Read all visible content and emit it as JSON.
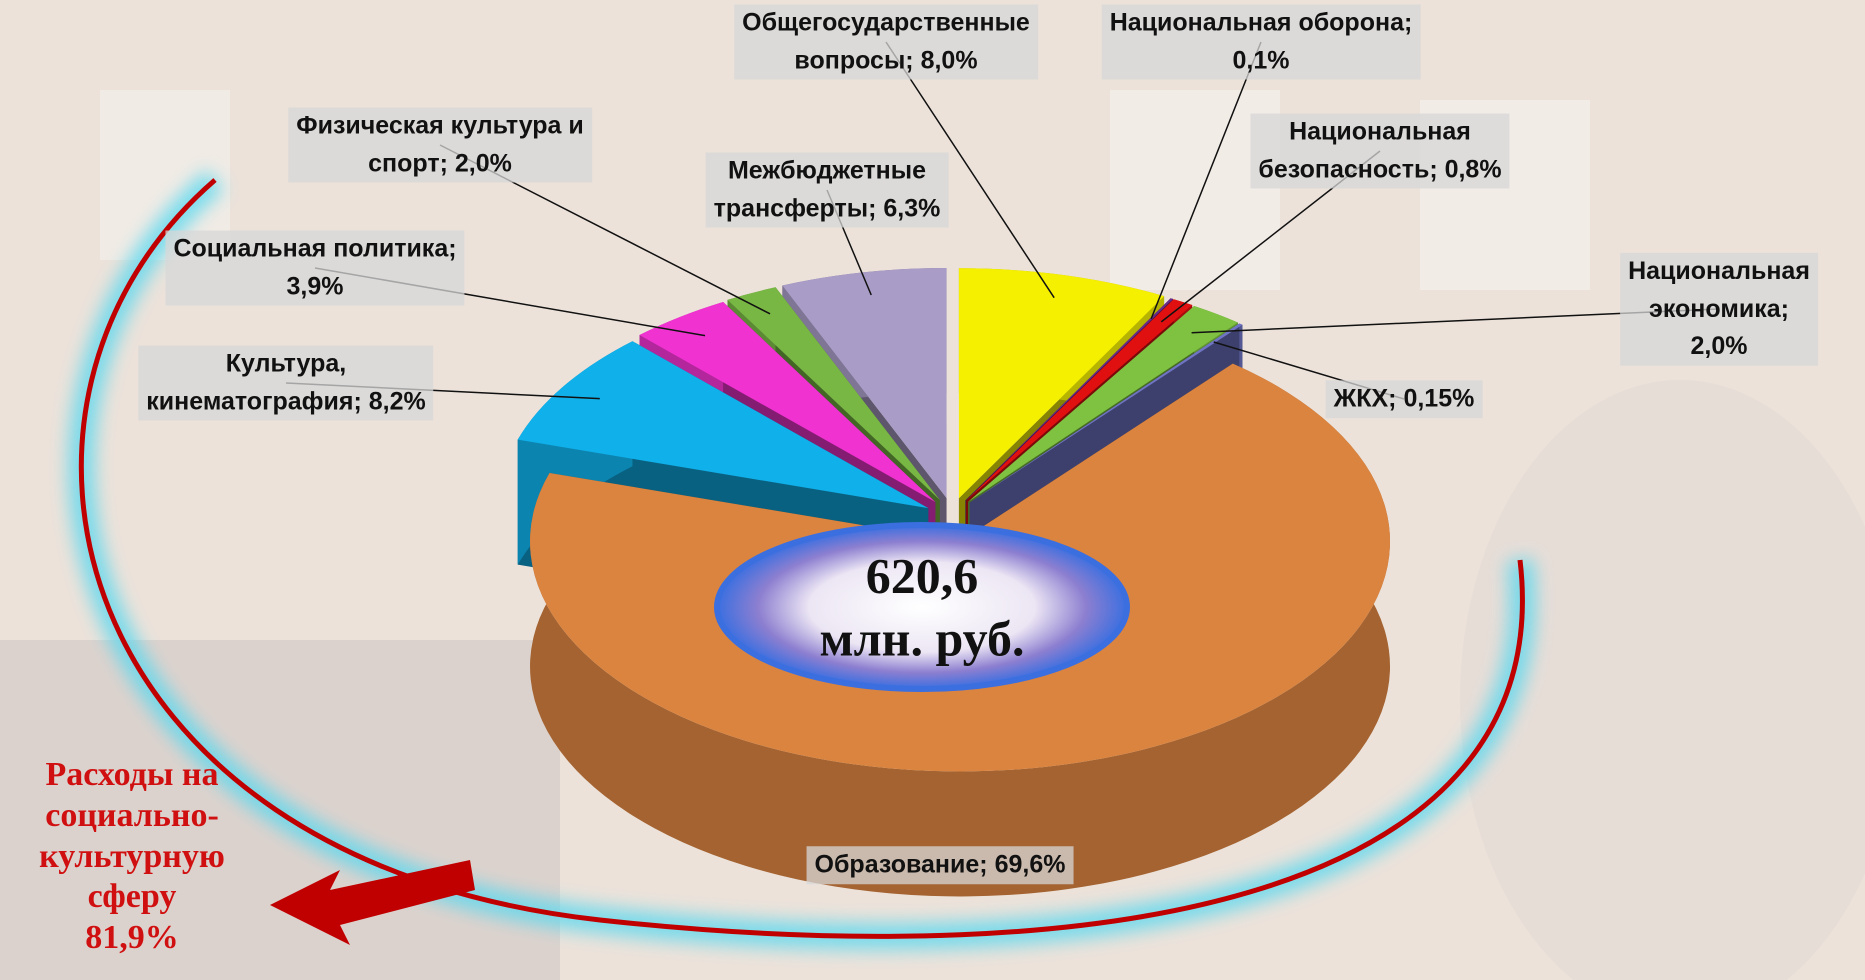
{
  "chart_data": {
    "type": "pie",
    "value_labels": [
      "Общегосударственные\nвопросы; 8,0%",
      "Национальная оборона;\n0,1%",
      "Национальная\nбезопасность; 0,8%",
      "Национальная\nэкономика; 2,0%",
      "ЖКХ; 0,15%",
      "Образование; 69,6%",
      "Культура,\nкинематография; 8,2%",
      "Социальная политика;\n3,9%",
      "Физическая культура и\nспорт; 2,0%",
      "Межбюджетные\nтрансферты; 6,3%"
    ],
    "values": [
      8.0,
      0.1,
      0.8,
      2.0,
      0.15,
      69.6,
      8.2,
      3.9,
      2.0,
      6.3
    ],
    "colors": [
      "#f4f000",
      "#6a2b8c",
      "#e01010",
      "#7fc241",
      "#6f74c4",
      "#da8440",
      "#10b0ea",
      "#f033d0",
      "#79b745",
      "#a99cc6"
    ],
    "center_text": "620,6\nмлн. руб.",
    "annotation": "Расходы на\nсоциально-\nкультурную\nсферу\n81,9%"
  }
}
